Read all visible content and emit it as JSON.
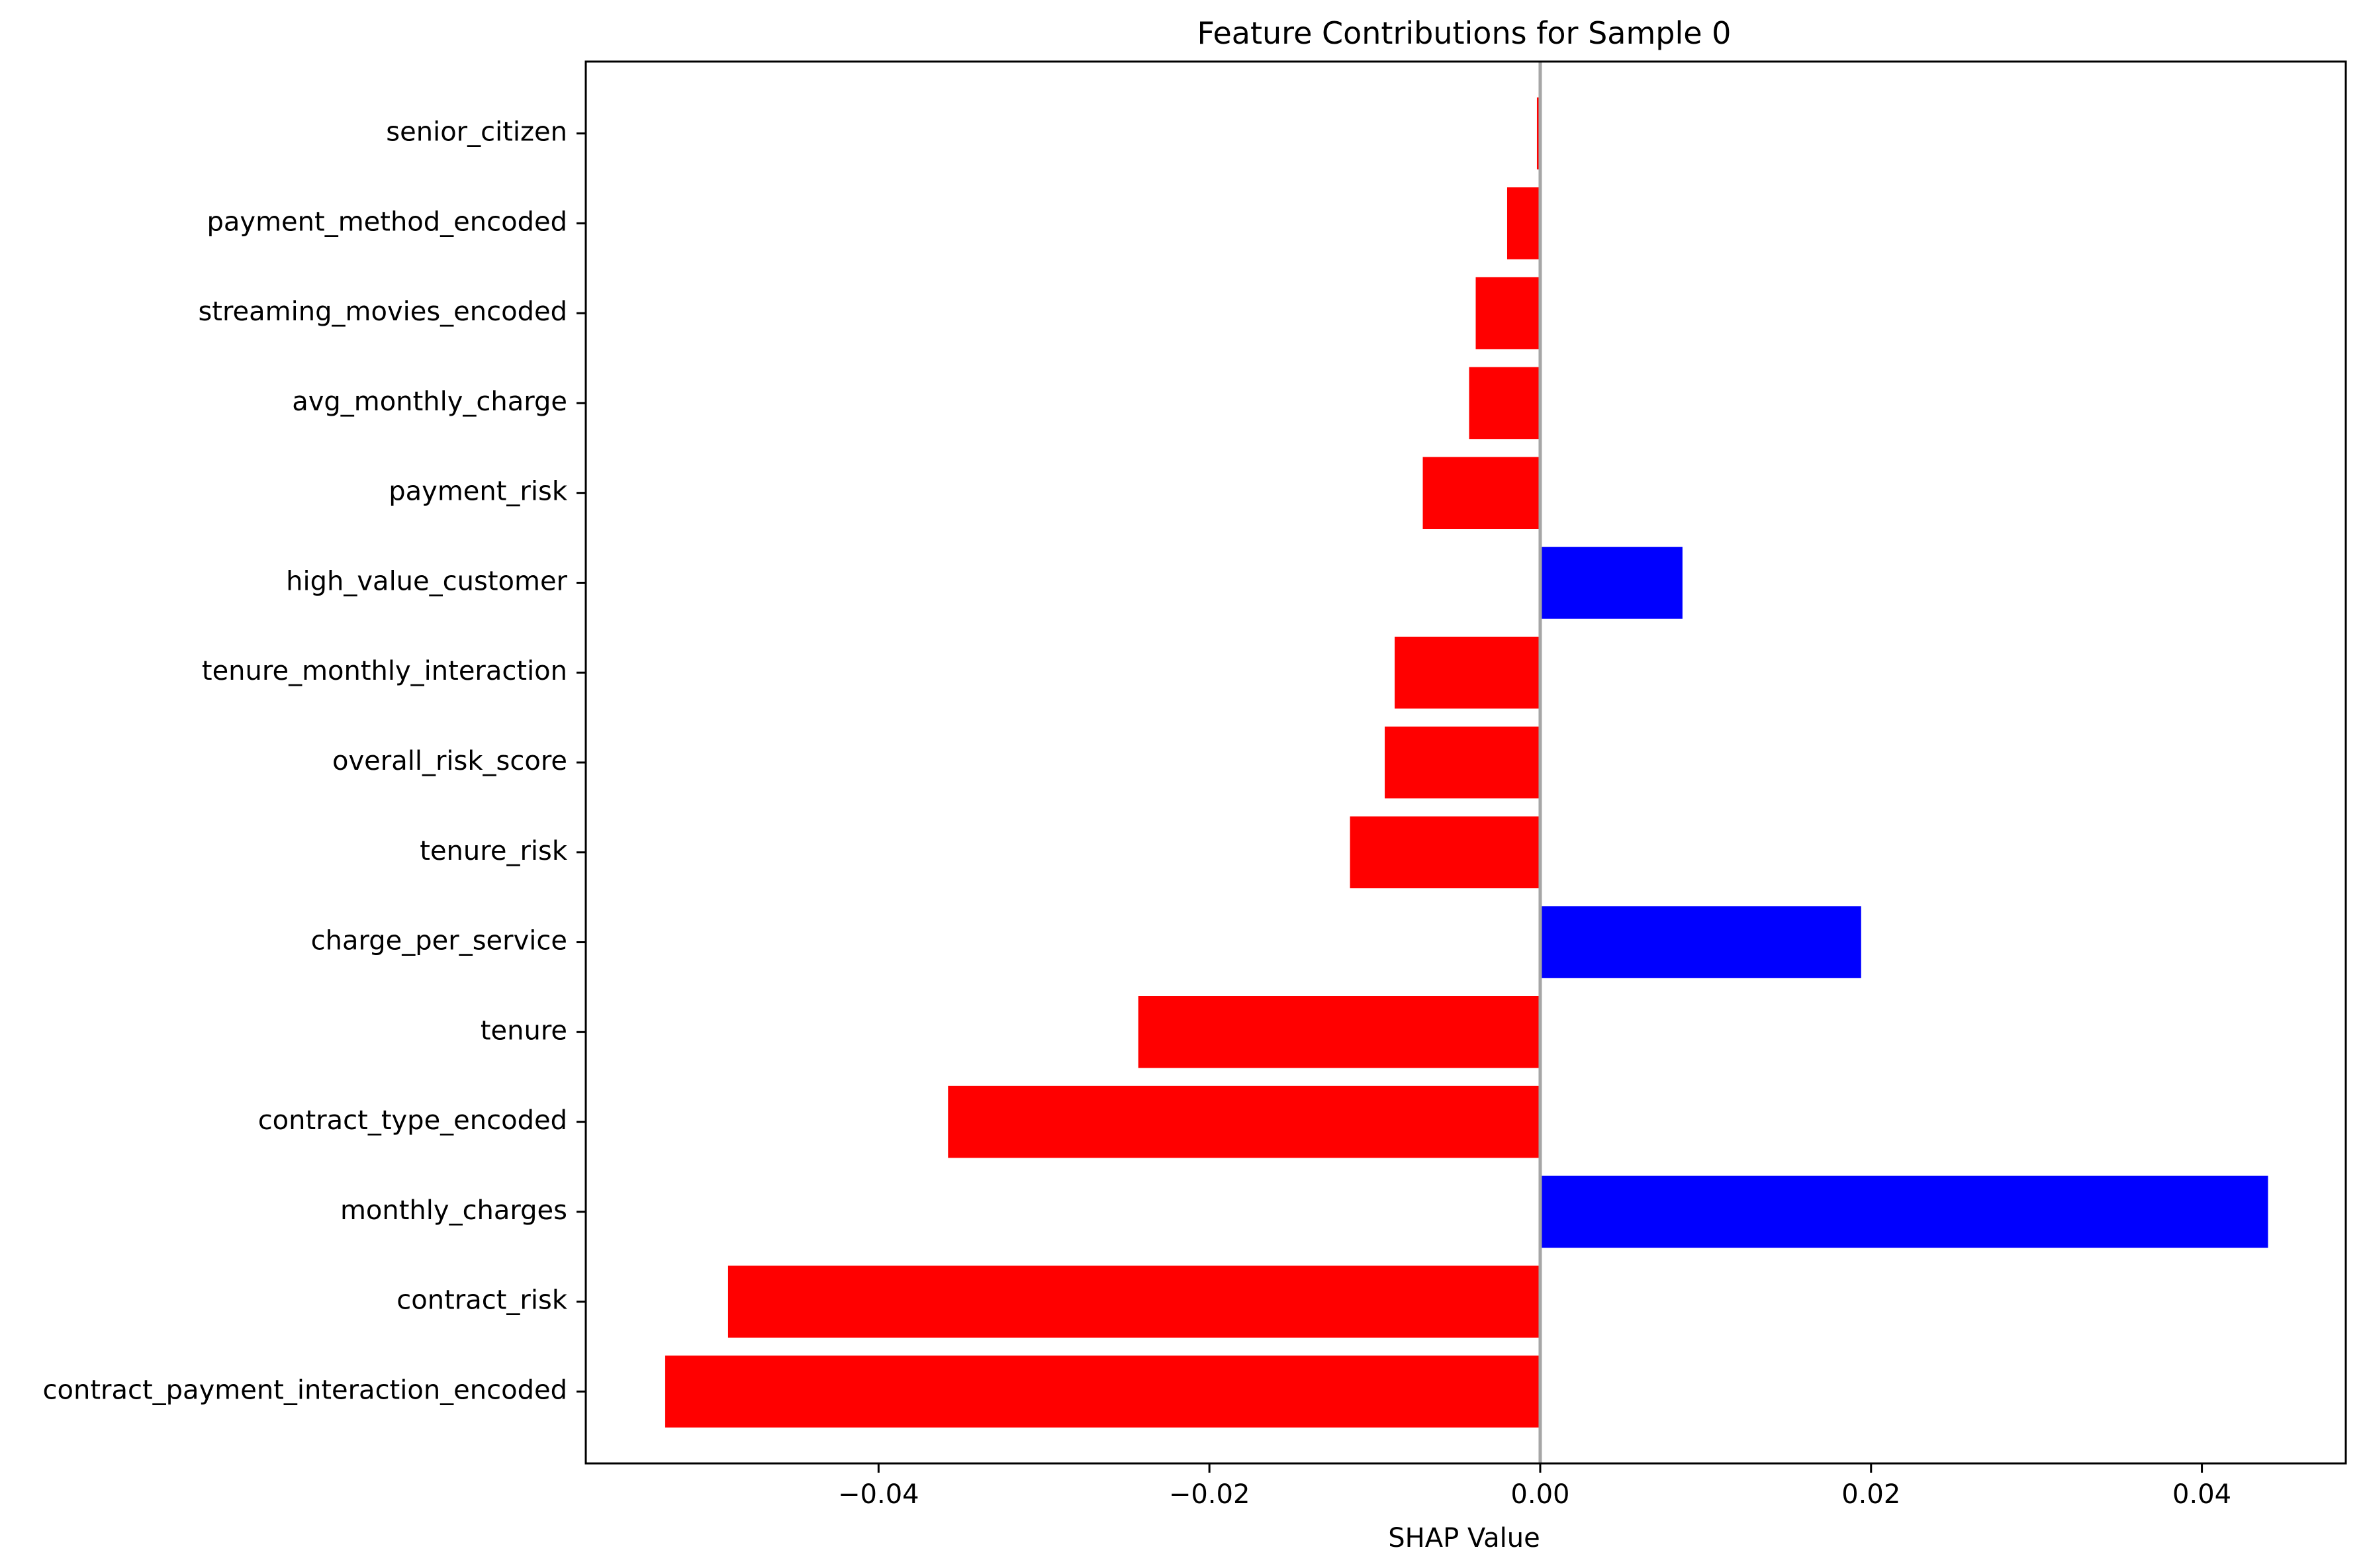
{
  "chart_data": {
    "type": "bar",
    "orientation": "horizontal",
    "title": "Feature Contributions for Sample 0",
    "xlabel": "SHAP Value",
    "ylabel": "",
    "xlim": [
      -0.0577,
      0.0487
    ],
    "grid": false,
    "legend": "none",
    "xticks": [
      -0.04,
      -0.02,
      0.0,
      0.02,
      0.04
    ],
    "xtick_labels": [
      "−0.04",
      "−0.02",
      "0.00",
      "0.02",
      "0.04"
    ],
    "categories": [
      "contract_payment_interaction_encoded",
      "contract_risk",
      "monthly_charges",
      "contract_type_encoded",
      "tenure",
      "charge_per_service",
      "tenure_risk",
      "overall_risk_score",
      "tenure_monthly_interaction",
      "high_value_customer",
      "payment_risk",
      "avg_monthly_charge",
      "streaming_movies_encoded",
      "payment_method_encoded",
      "senior_citizen"
    ],
    "values": [
      -0.0529,
      -0.0491,
      0.044,
      -0.0358,
      -0.0243,
      0.0194,
      -0.0115,
      -0.0094,
      -0.0088,
      0.0086,
      -0.0071,
      -0.0043,
      -0.0039,
      -0.002,
      -0.0002
    ],
    "colors": {
      "negative": "#ff0000",
      "positive": "#0000ff",
      "zero_line": "#a6a6a6",
      "axes": "#000000"
    }
  }
}
